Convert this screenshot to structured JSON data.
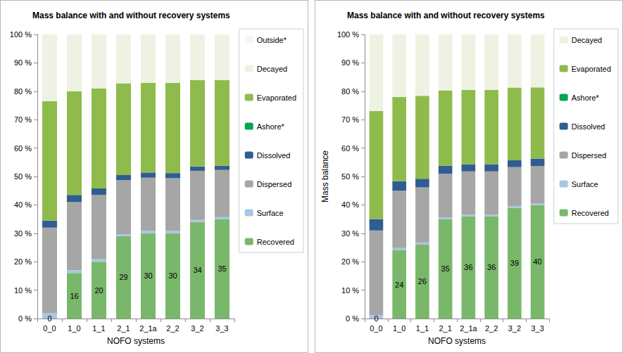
{
  "chart_data": [
    {
      "type": "bar",
      "title": "Mass balance with and without recovery systems",
      "x_label": "NOFO systems",
      "categories": [
        "0_0",
        "1_0",
        "1_1",
        "2_1",
        "2_1a",
        "2_2",
        "3_2",
        "3_3"
      ],
      "stacked": true,
      "grid": false,
      "legend": "right",
      "ylim": [
        0,
        100
      ],
      "yticks": [
        {
          "value": 0,
          "label": "0 %"
        },
        {
          "value": 10,
          "label": "10 %"
        },
        {
          "value": 20,
          "label": "20 %"
        },
        {
          "value": 30,
          "label": "30 %"
        },
        {
          "value": 40,
          "label": "40 %"
        },
        {
          "value": 50,
          "label": "50 %"
        },
        {
          "value": 60,
          "label": "60 %"
        },
        {
          "value": 70,
          "label": "70 %"
        },
        {
          "value": 80,
          "label": "80 %"
        },
        {
          "value": 90,
          "label": "90 %"
        },
        {
          "value": 100,
          "label": "100 %"
        }
      ],
      "series": [
        {
          "name": "Recovered",
          "color": "#79b86a",
          "data_labels": true,
          "values": [
            0,
            16,
            20,
            29,
            30,
            30,
            34,
            35
          ]
        },
        {
          "name": "Surface",
          "color": "#a7c6e6",
          "values": [
            2,
            1,
            1,
            0.7,
            0.8,
            0.8,
            0.7,
            0.7
          ]
        },
        {
          "name": "Dispersed",
          "color": "#a6a6a6",
          "values": [
            30,
            24,
            22.5,
            19,
            18.8,
            18.6,
            17.3,
            16.6
          ]
        },
        {
          "name": "Dissolved",
          "color": "#2f5d91",
          "values": [
            2.5,
            2.5,
            2.3,
            1.8,
            1.8,
            1.8,
            1.5,
            1.5
          ]
        },
        {
          "name": "Ashore*",
          "color": "#00a650",
          "values": [
            0,
            0,
            0,
            0,
            0,
            0,
            0,
            0
          ]
        },
        {
          "name": "Evaporated",
          "color": "#8fbb4c",
          "values": [
            42,
            36.5,
            35.2,
            32.3,
            31.6,
            31.7,
            30.4,
            30.2
          ]
        },
        {
          "name": "Decayed",
          "color": "#eef2e2",
          "values": [
            23.5,
            20,
            19,
            17.2,
            17,
            17.1,
            16.1,
            16
          ]
        },
        {
          "name": "Outside*",
          "color": "#f2f5fa",
          "values": [
            0,
            0,
            0,
            0,
            0,
            0,
            0,
            0
          ]
        }
      ]
    },
    {
      "type": "bar",
      "title": "Mass balance with and without recovery systems",
      "x_label": "NOFO systems",
      "y_label": "Mass balance",
      "categories": [
        "0_0",
        "1_0",
        "1_1",
        "2_1",
        "2_1a",
        "2_2",
        "3_2",
        "3_3"
      ],
      "stacked": true,
      "grid": false,
      "legend": "right",
      "ylim": [
        0,
        100
      ],
      "yticks": [
        {
          "value": 0,
          "label": "0 %"
        },
        {
          "value": 10,
          "label": "10 %"
        },
        {
          "value": 20,
          "label": "20 %"
        },
        {
          "value": 30,
          "label": "30 %"
        },
        {
          "value": 40,
          "label": "40 %"
        },
        {
          "value": 50,
          "label": "50 %"
        },
        {
          "value": 60,
          "label": "60 %"
        },
        {
          "value": 70,
          "label": "70 %"
        },
        {
          "value": 80,
          "label": "80 %"
        },
        {
          "value": 90,
          "label": "90 %"
        },
        {
          "value": 100,
          "label": "100 %"
        }
      ],
      "series": [
        {
          "name": "Recovered",
          "color": "#79b86a",
          "data_labels": true,
          "values": [
            0,
            24,
            26,
            35,
            36,
            36,
            39,
            40
          ]
        },
        {
          "name": "Surface",
          "color": "#a7c6e6",
          "values": [
            1.2,
            0.8,
            0.8,
            0.6,
            0.5,
            0.5,
            0.6,
            0.5
          ]
        },
        {
          "name": "Dispersed",
          "color": "#a6a6a6",
          "values": [
            29.8,
            20.2,
            19.4,
            15.4,
            15.3,
            15.3,
            13.7,
            13.2
          ]
        },
        {
          "name": "Dissolved",
          "color": "#2f5d91",
          "values": [
            4,
            3.3,
            3,
            2.8,
            2.5,
            2.5,
            2.4,
            2.6
          ]
        },
        {
          "name": "Ashore*",
          "color": "#00a650",
          "values": [
            0,
            0,
            0,
            0,
            0,
            0,
            0,
            0
          ]
        },
        {
          "name": "Evaporated",
          "color": "#8fbb4c",
          "values": [
            38,
            29.7,
            29.2,
            26.5,
            26.2,
            26.2,
            25.6,
            25.1
          ]
        },
        {
          "name": "Decayed",
          "color": "#eef2e2",
          "values": [
            27,
            22,
            21.6,
            19.7,
            19.5,
            19.5,
            18.7,
            18.6
          ]
        }
      ]
    }
  ]
}
